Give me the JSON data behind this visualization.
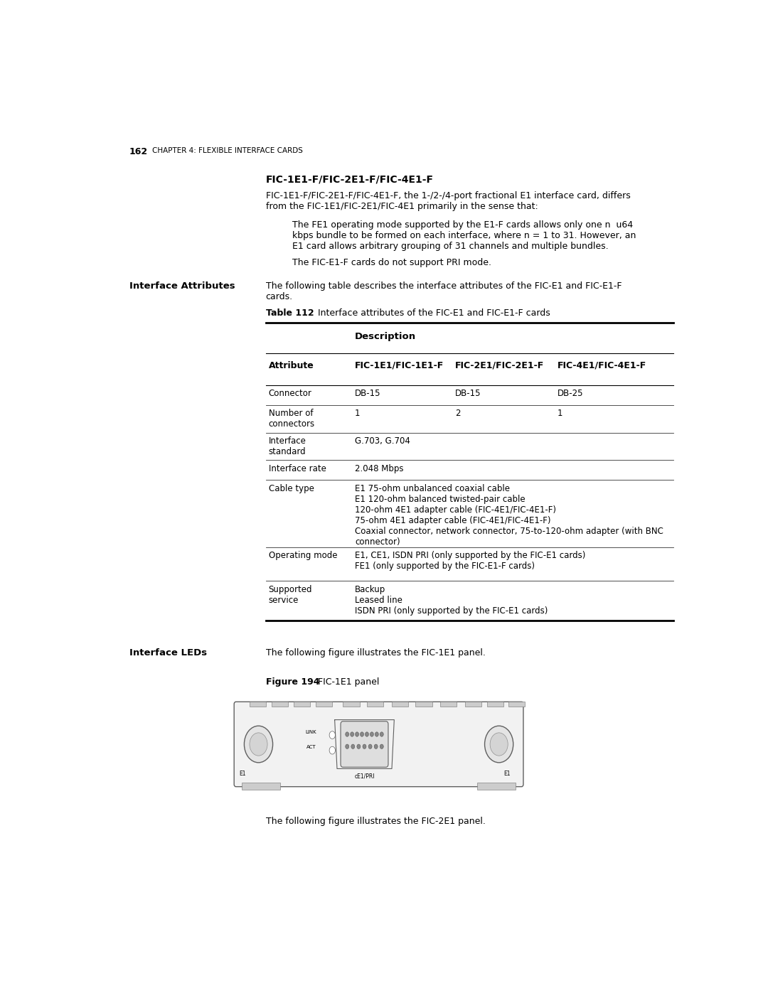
{
  "bg_color": "#ffffff",
  "page_width": 10.8,
  "page_height": 13.97,
  "header_number": "162",
  "header_text": "CHAPTER 4: FLEXIBLE INTERFACE CARDS",
  "section_title": "FIC-1E1-F/FIC-2E1-F/FIC-4E1-F",
  "section_body1": "FIC-1E1-F/FIC-2E1-F/FIC-4E1-F, the 1-/2-/4-port fractional E1 interface card, differs",
  "section_body2": "from the FIC-1E1/FIC-2E1/FIC-4E1 primarily in the sense that:",
  "indent_text1": "The FE1 operating mode supported by the E1-F cards allows only one n  u64",
  "indent_text2": "kbps bundle to be formed on each interface, where n = 1 to 31. However, an",
  "indent_text3": "E1 card allows arbitrary grouping of 31 channels and multiple bundles.",
  "indent_text4": "The FIC-E1-F cards do not support PRI mode.",
  "left_label1": "Interface Attributes",
  "body_text1": "The following table describes the interface attributes of the FIC-E1 and FIC-E1-F",
  "body_text2": "cards.",
  "table_bold": "Table 112",
  "table_caption": "   Interface attributes of the FIC-E1 and FIC-E1-F cards",
  "table_header_desc": "Description",
  "table_col0": "Attribute",
  "table_col1": "FIC-1E1/FIC-1E1-F",
  "table_col2": "FIC-2E1/FIC-2E1-F",
  "table_col3": "FIC-4E1/FIC-4E1-F",
  "left_label2": "Interface LEDs",
  "leds_text": "The following figure illustrates the FIC-1E1 panel.",
  "figure_label": "Figure 194",
  "figure_caption": "FIC-1E1 panel",
  "bottom_text": "The following figure illustrates the FIC-2E1 panel."
}
